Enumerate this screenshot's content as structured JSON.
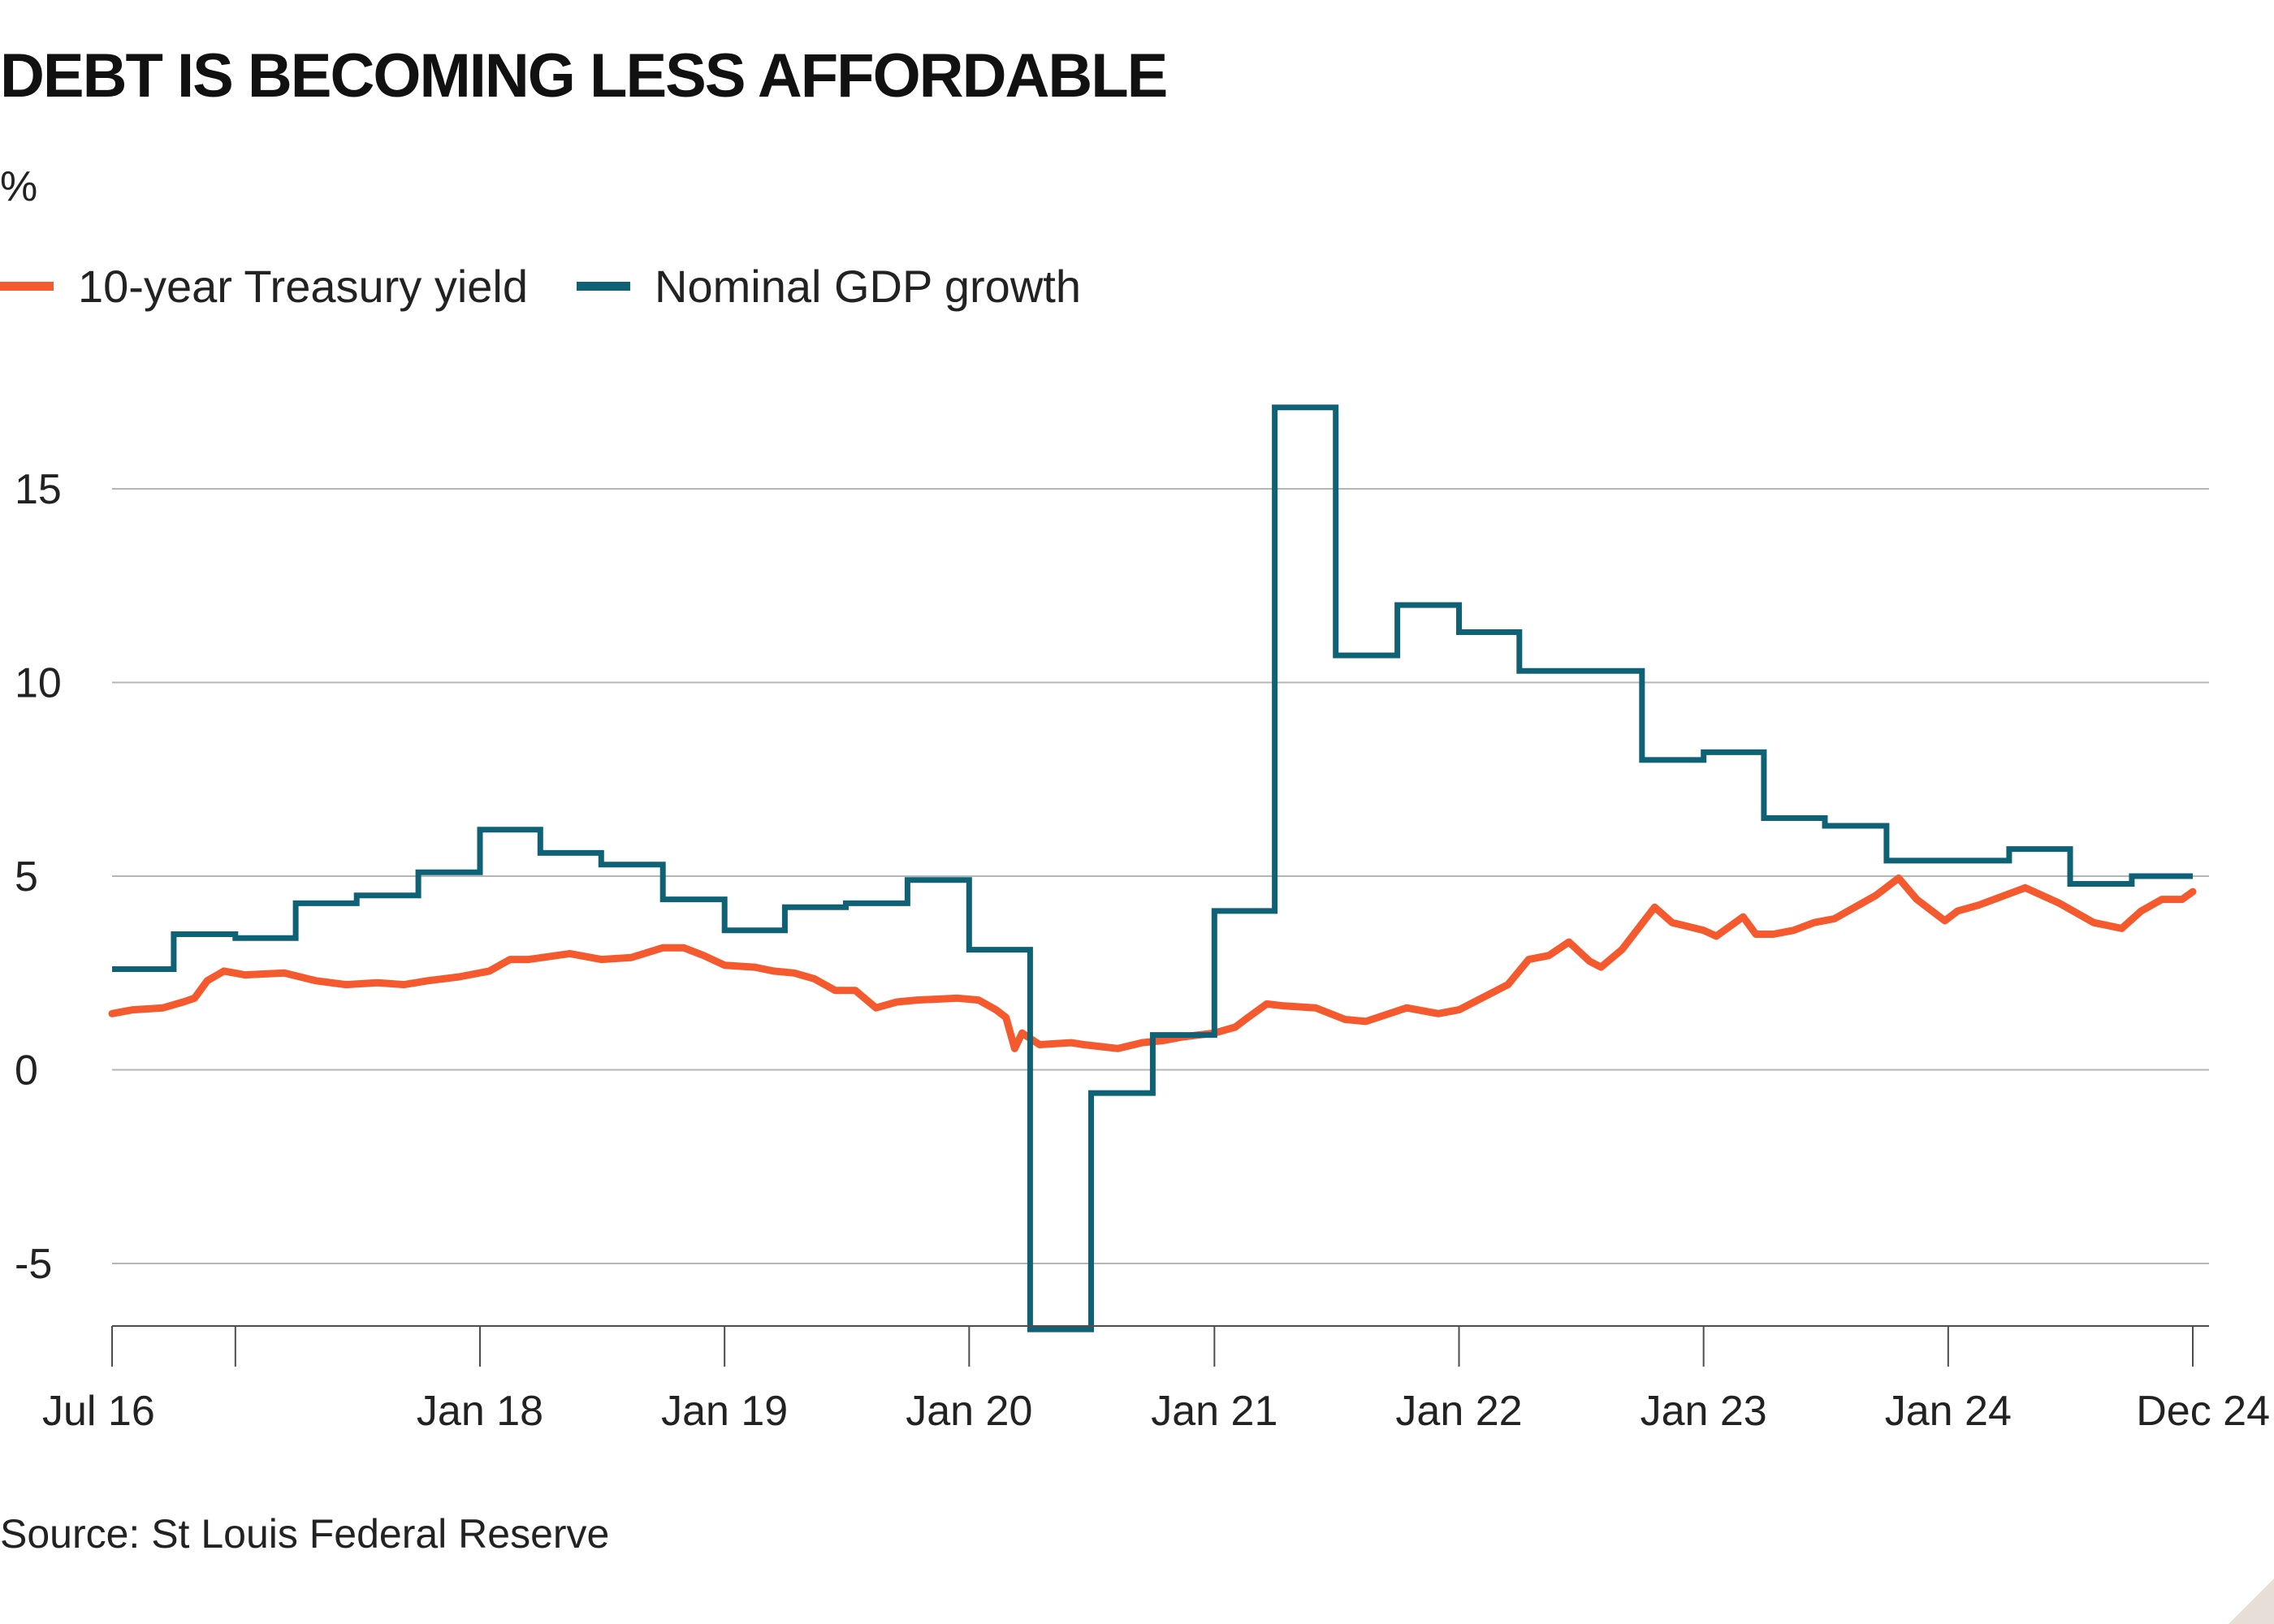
{
  "colors": {
    "treasury": "#f45a2e",
    "gdp": "#0f6175",
    "grid": "#b5b5b5",
    "axis": "#4d4d4d",
    "text": "#222222"
  },
  "chart_data": {
    "type": "line",
    "title": "DEBT IS BECOMING LESS AFFORDABLE",
    "unit_label": "%",
    "source": "Source: St Louis Federal Reserve",
    "legend_placement": "top-left",
    "grid": true,
    "ylim": [
      -6.7,
      17.5
    ],
    "y_ticks": [
      -5,
      0,
      5,
      10,
      15
    ],
    "y_tick_labels": [
      "-5",
      "0",
      "5",
      "10",
      "15"
    ],
    "x_range": [
      "2016-07-01",
      "2024-12-31"
    ],
    "x_ticks": [
      "2016-07-01",
      "2017-01-01",
      "2018-01-01",
      "2019-01-01",
      "2020-01-01",
      "2021-01-01",
      "2022-01-01",
      "2023-01-01",
      "2024-01-01",
      "2024-12-31"
    ],
    "x_tick_labels": [
      "Jul 16",
      "",
      "Jan 18",
      "Jan 19",
      "Jan 20",
      "Jan 21",
      "Jan 22",
      "Jan 23",
      "Jan 24",
      "Dec 24"
    ],
    "series": [
      {
        "name": "10-year Treasury yield",
        "color_key": "treasury",
        "step": false,
        "x": [
          "2016-07-01",
          "2016-08-01",
          "2016-09-15",
          "2016-10-15",
          "2016-11-01",
          "2016-11-20",
          "2016-12-15",
          "2017-01-15",
          "2017-03-15",
          "2017-05-01",
          "2017-06-15",
          "2017-08-01",
          "2017-09-10",
          "2017-10-15",
          "2017-12-01",
          "2018-01-15",
          "2018-02-15",
          "2018-03-15",
          "2018-05-15",
          "2018-07-01",
          "2018-08-15",
          "2018-10-01",
          "2018-11-01",
          "2018-12-01",
          "2019-01-01",
          "2019-02-15",
          "2019-03-15",
          "2019-04-15",
          "2019-05-15",
          "2019-06-15",
          "2019-07-15",
          "2019-08-15",
          "2019-09-15",
          "2019-10-15",
          "2019-12-15",
          "2020-01-15",
          "2020-02-10",
          "2020-02-25",
          "2020-03-09",
          "2020-03-20",
          "2020-04-15",
          "2020-06-01",
          "2020-06-20",
          "2020-07-15",
          "2020-08-10",
          "2020-09-15",
          "2020-10-15",
          "2020-11-15",
          "2021-01-01",
          "2021-02-01",
          "2021-02-20",
          "2021-03-20",
          "2021-04-15",
          "2021-06-01",
          "2021-07-15",
          "2021-08-15",
          "2021-10-15",
          "2021-12-01",
          "2022-01-01",
          "2022-02-15",
          "2022-03-15",
          "2022-04-15",
          "2022-05-15",
          "2022-06-14",
          "2022-07-15",
          "2022-08-01",
          "2022-09-01",
          "2022-10-20",
          "2022-11-15",
          "2023-01-01",
          "2023-01-20",
          "2023-03-01",
          "2023-03-20",
          "2023-04-15",
          "2023-05-15",
          "2023-06-15",
          "2023-07-15",
          "2023-08-20",
          "2023-09-15",
          "2023-10-19",
          "2023-11-15",
          "2023-12-27",
          "2024-01-15",
          "2024-02-15",
          "2024-04-25",
          "2024-06-15",
          "2024-08-05",
          "2024-09-16",
          "2024-10-15",
          "2024-11-15",
          "2024-12-15",
          "2024-12-31"
        ],
        "values": [
          1.45,
          1.55,
          1.6,
          1.75,
          1.85,
          2.3,
          2.55,
          2.45,
          2.5,
          2.3,
          2.2,
          2.25,
          2.2,
          2.3,
          2.4,
          2.55,
          2.85,
          2.85,
          3.0,
          2.85,
          2.9,
          3.15,
          3.15,
          2.95,
          2.7,
          2.65,
          2.55,
          2.5,
          2.35,
          2.05,
          2.05,
          1.6,
          1.75,
          1.8,
          1.85,
          1.8,
          1.55,
          1.35,
          0.55,
          0.95,
          0.65,
          0.7,
          0.65,
          0.6,
          0.55,
          0.7,
          0.75,
          0.85,
          0.95,
          1.1,
          1.35,
          1.7,
          1.65,
          1.6,
          1.3,
          1.25,
          1.6,
          1.45,
          1.55,
          1.95,
          2.2,
          2.85,
          2.95,
          3.3,
          2.8,
          2.65,
          3.1,
          4.2,
          3.8,
          3.6,
          3.45,
          3.95,
          3.5,
          3.5,
          3.6,
          3.8,
          3.9,
          4.25,
          4.5,
          4.95,
          4.4,
          3.85,
          4.1,
          4.25,
          4.7,
          4.3,
          3.8,
          3.65,
          4.1,
          4.4,
          4.4,
          4.6
        ]
      },
      {
        "name": "Nominal GDP growth",
        "color_key": "gdp",
        "step": true,
        "x": [
          "2016-07-01",
          "2016-10-01",
          "2017-01-01",
          "2017-04-01",
          "2017-07-01",
          "2017-10-01",
          "2018-01-01",
          "2018-04-01",
          "2018-07-01",
          "2018-10-01",
          "2019-01-01",
          "2019-04-01",
          "2019-07-01",
          "2019-10-01",
          "2020-01-01",
          "2020-04-01",
          "2020-07-01",
          "2020-10-01",
          "2021-01-01",
          "2021-04-01",
          "2021-07-01",
          "2021-10-01",
          "2022-01-01",
          "2022-04-01",
          "2022-07-01",
          "2022-10-01",
          "2023-01-01",
          "2023-04-01",
          "2023-07-01",
          "2023-10-01",
          "2024-01-01",
          "2024-04-01",
          "2024-07-01",
          "2024-10-01"
        ],
        "values": [
          2.6,
          3.5,
          3.4,
          4.3,
          4.5,
          5.1,
          6.2,
          5.6,
          5.3,
          4.4,
          3.6,
          4.2,
          4.3,
          4.9,
          3.1,
          -6.7,
          -0.6,
          0.9,
          4.1,
          17.1,
          10.7,
          12.0,
          11.3,
          10.3,
          10.3,
          8.0,
          8.2,
          6.5,
          6.3,
          5.4,
          5.4,
          5.7,
          4.8,
          5.0
        ],
        "end_x": "2024-12-31"
      }
    ]
  }
}
